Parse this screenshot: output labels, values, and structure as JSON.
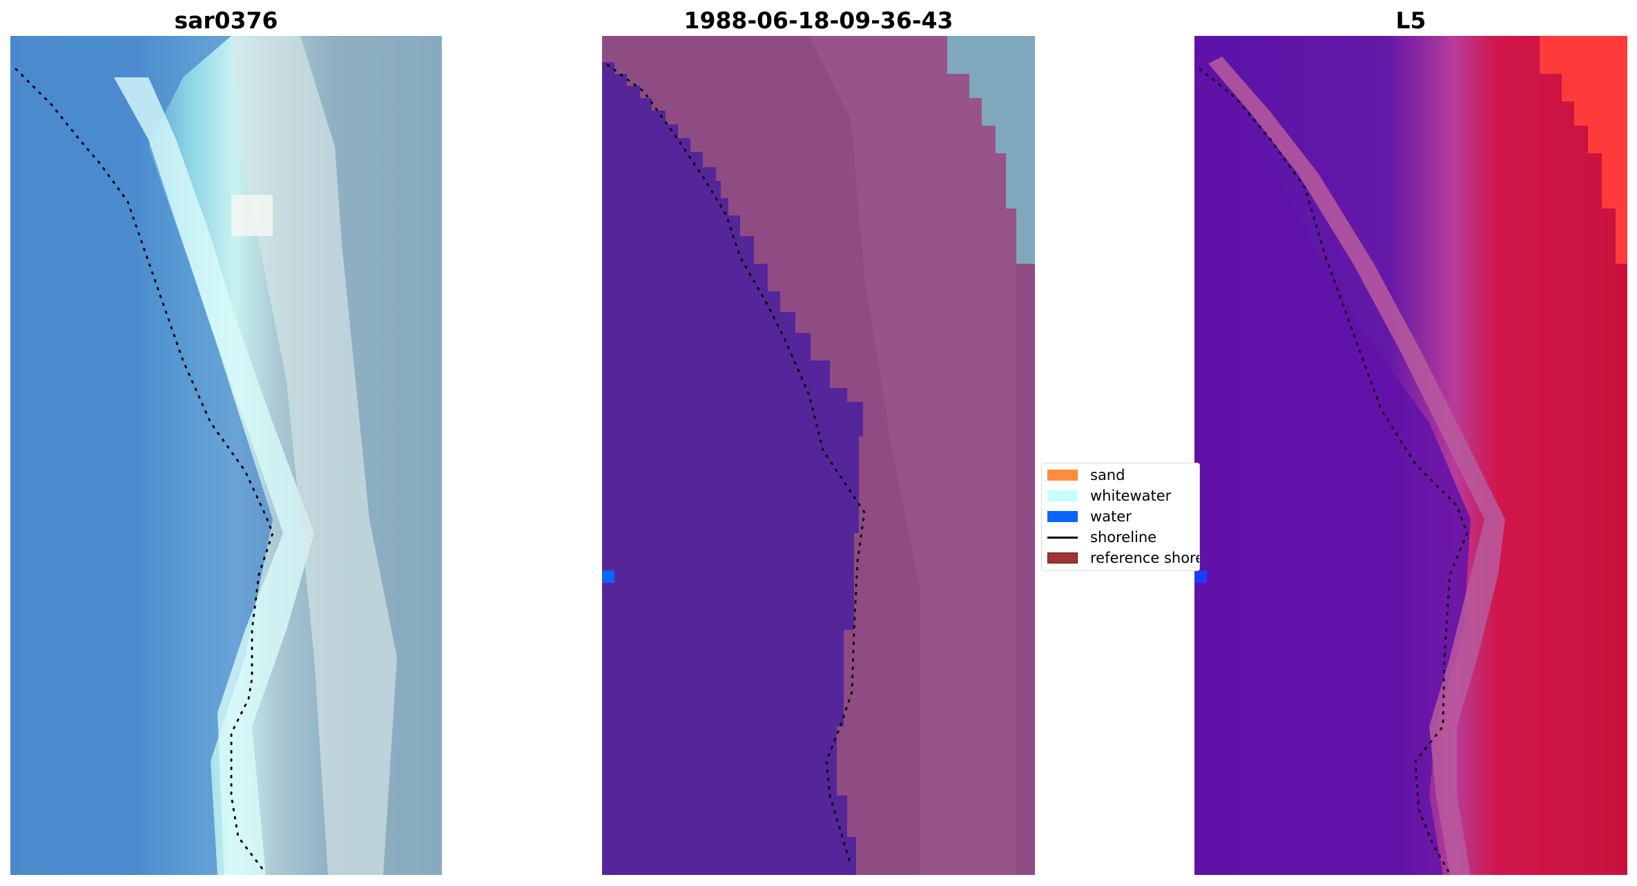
{
  "panels": [
    {
      "title": "sar0376"
    },
    {
      "title": "1988-06-18-09-36-43"
    },
    {
      "title": "L5"
    }
  ],
  "legend": {
    "items": [
      {
        "label": "sand",
        "kind": "patch",
        "color": "#ff8c3c"
      },
      {
        "label": "whitewater",
        "kind": "patch",
        "color": "#c8fcfc"
      },
      {
        "label": "water",
        "kind": "patch",
        "color": "#0a64ff"
      },
      {
        "label": "shoreline",
        "kind": "line",
        "color": "#000000"
      },
      {
        "label": "reference shoreline",
        "kind": "patch",
        "color": "#a03232"
      }
    ]
  },
  "colors": {
    "water_class": "#55269a",
    "land_class": "#8f4c82",
    "sky_blue": "#7fa8bd",
    "rgb_water": "#4f8fce",
    "rgb_surf": "#b6eef0",
    "rgb_land": "#8eaec0",
    "ndwi_water": "#5e16a8",
    "ndwi_land": "#c8143a",
    "ndwi_bright": "#ff3a3a"
  }
}
